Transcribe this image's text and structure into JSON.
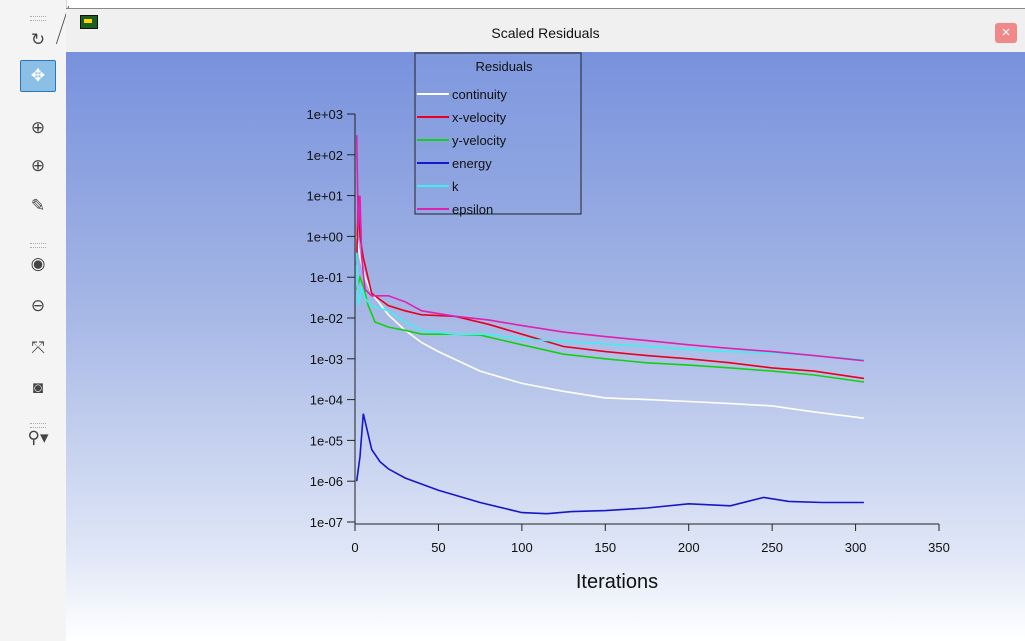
{
  "window": {
    "title": "Scaled Residuals",
    "close_glyph": "×"
  },
  "toolbar": {
    "items": [
      {
        "name": "rotate-icon",
        "glyph": "↻",
        "active": false
      },
      {
        "name": "pan-icon",
        "glyph": "✥",
        "active": true
      },
      {
        "name": "zoom-in-icon",
        "glyph": "⊕",
        "active": false
      },
      {
        "name": "zoom-plus-icon",
        "glyph": "⊕",
        "active": false
      },
      {
        "name": "probe-icon",
        "glyph": "✎",
        "active": false
      },
      {
        "name": "fit-icon",
        "glyph": "◉",
        "active": false
      },
      {
        "name": "zoom-out-icon",
        "glyph": "⊖",
        "active": false
      },
      {
        "name": "axes-icon",
        "glyph": "⤧",
        "active": false
      },
      {
        "name": "camera-icon",
        "glyph": "◙",
        "active": false
      },
      {
        "name": "view-options-icon",
        "glyph": "⚲▾",
        "active": false
      }
    ]
  },
  "chart_data": {
    "type": "line",
    "legend_title": "Residuals",
    "legend_position": "top-center",
    "xlabel": "Iterations",
    "xlim": [
      0,
      350
    ],
    "xticks": [
      0,
      50,
      100,
      150,
      200,
      250,
      300,
      350
    ],
    "ylim": [
      1e-07,
      1000
    ],
    "yscale": "log",
    "yticks": [
      "1e+03",
      "1e+02",
      "1e+01",
      "1e+00",
      "1e-01",
      "1e-02",
      "1e-03",
      "1e-04",
      "1e-05",
      "1e-06",
      "1e-07"
    ],
    "series": [
      {
        "name": "continuity",
        "color": "#ffffff",
        "points": [
          [
            1,
            1.0
          ],
          [
            3,
            0.3
          ],
          [
            6,
            0.1
          ],
          [
            10,
            0.04
          ],
          [
            20,
            0.012
          ],
          [
            30,
            0.005
          ],
          [
            40,
            0.0025
          ],
          [
            50,
            0.0015
          ],
          [
            75,
            0.0005
          ],
          [
            100,
            0.00025
          ],
          [
            125,
            0.00016
          ],
          [
            150,
            0.00011
          ],
          [
            175,
            0.0001
          ],
          [
            200,
            9e-05
          ],
          [
            225,
            8e-05
          ],
          [
            250,
            7e-05
          ],
          [
            275,
            5e-05
          ],
          [
            305,
            3.5e-05
          ]
        ]
      },
      {
        "name": "x-velocity",
        "color": "#e8001c",
        "points": [
          [
            1,
            0.2
          ],
          [
            2,
            10
          ],
          [
            3,
            1.0
          ],
          [
            5,
            0.3
          ],
          [
            10,
            0.04
          ],
          [
            20,
            0.02
          ],
          [
            30,
            0.015
          ],
          [
            40,
            0.012
          ],
          [
            60,
            0.011
          ],
          [
            80,
            0.007
          ],
          [
            100,
            0.004
          ],
          [
            125,
            0.002
          ],
          [
            150,
            0.0015
          ],
          [
            175,
            0.0012
          ],
          [
            200,
            0.001
          ],
          [
            225,
            0.0008
          ],
          [
            250,
            0.0006
          ],
          [
            275,
            0.0005
          ],
          [
            305,
            0.00033
          ]
        ]
      },
      {
        "name": "y-velocity",
        "color": "#13d013",
        "points": [
          [
            1,
            0.05
          ],
          [
            3,
            0.1
          ],
          [
            5,
            0.06
          ],
          [
            8,
            0.02
          ],
          [
            12,
            0.008
          ],
          [
            20,
            0.006
          ],
          [
            30,
            0.005
          ],
          [
            40,
            0.004
          ],
          [
            60,
            0.004
          ],
          [
            75,
            0.0038
          ],
          [
            100,
            0.0022
          ],
          [
            125,
            0.0013
          ],
          [
            150,
            0.001
          ],
          [
            175,
            0.0008
          ],
          [
            200,
            0.0007
          ],
          [
            225,
            0.0006
          ],
          [
            250,
            0.0005
          ],
          [
            275,
            0.0004
          ],
          [
            305,
            0.00027
          ]
        ]
      },
      {
        "name": "energy",
        "color": "#1717c8",
        "points": [
          [
            1,
            1e-06
          ],
          [
            3,
            4e-06
          ],
          [
            5,
            4.5e-05
          ],
          [
            7,
            2e-05
          ],
          [
            10,
            6e-06
          ],
          [
            15,
            3e-06
          ],
          [
            20,
            2e-06
          ],
          [
            30,
            1.2e-06
          ],
          [
            50,
            6e-07
          ],
          [
            75,
            3e-07
          ],
          [
            100,
            1.7e-07
          ],
          [
            115,
            1.6e-07
          ],
          [
            130,
            1.8e-07
          ],
          [
            150,
            1.9e-07
          ],
          [
            175,
            2.2e-07
          ],
          [
            200,
            2.8e-07
          ],
          [
            225,
            2.5e-07
          ],
          [
            245,
            4e-07
          ],
          [
            260,
            3.2e-07
          ],
          [
            280,
            3e-07
          ],
          [
            305,
            3e-07
          ]
        ]
      },
      {
        "name": "k",
        "color": "#3ff0f0",
        "points": [
          [
            1,
            0.4
          ],
          [
            2,
            0.02
          ],
          [
            4,
            0.06
          ],
          [
            6,
            0.03
          ],
          [
            10,
            0.02
          ],
          [
            20,
            0.015
          ],
          [
            30,
            0.008
          ],
          [
            40,
            0.005
          ],
          [
            60,
            0.004
          ],
          [
            80,
            0.004
          ],
          [
            100,
            0.003
          ],
          [
            125,
            0.0027
          ],
          [
            150,
            0.0023
          ],
          [
            175,
            0.002
          ],
          [
            200,
            0.0017
          ],
          [
            225,
            0.0015
          ],
          [
            250,
            0.0014
          ],
          [
            275,
            0.0012
          ],
          [
            305,
            0.00095
          ]
        ]
      },
      {
        "name": "epsilon",
        "color": "#e020b0",
        "points": [
          [
            1,
            300
          ],
          [
            2,
            1.5
          ],
          [
            3,
            10
          ],
          [
            4,
            0.3
          ],
          [
            6,
            0.05
          ],
          [
            10,
            0.035
          ],
          [
            20,
            0.035
          ],
          [
            30,
            0.025
          ],
          [
            40,
            0.015
          ],
          [
            60,
            0.011
          ],
          [
            80,
            0.009
          ],
          [
            100,
            0.0065
          ],
          [
            125,
            0.0045
          ],
          [
            150,
            0.0035
          ],
          [
            175,
            0.0028
          ],
          [
            200,
            0.0022
          ],
          [
            225,
            0.0018
          ],
          [
            250,
            0.0015
          ],
          [
            275,
            0.0012
          ],
          [
            305,
            0.0009
          ]
        ]
      }
    ]
  }
}
